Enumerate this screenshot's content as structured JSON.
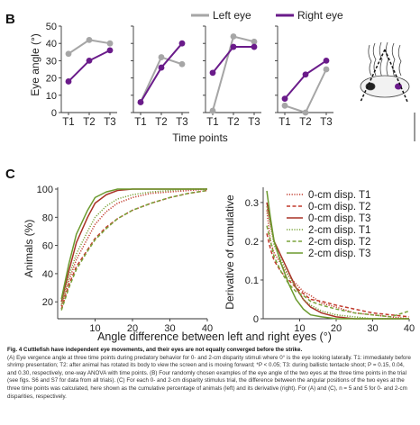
{
  "panel_b": {
    "letter": "B",
    "ylabel": "Eye angle (°)",
    "xlabel": "Time points",
    "legend": [
      {
        "label": "Left eye",
        "color": "#a6a6a6"
      },
      {
        "label": "Right eye",
        "color": "#6a1b8a"
      }
    ],
    "yticks": [
      "0",
      "10",
      "20",
      "30",
      "40",
      "50"
    ],
    "xticks": [
      "T1",
      "T2",
      "T3"
    ]
  },
  "panel_c": {
    "letter": "C",
    "xlabel": "Angle difference between left and right eyes (°)",
    "left_ylabel": "Animals (%)",
    "right_ylabel": "Derivative of cumulative",
    "left_yticks": [
      "20",
      "40",
      "60",
      "80",
      "100"
    ],
    "right_yticks": [
      "0",
      "0.1",
      "0.2",
      "0.3"
    ],
    "xticks": [
      "10",
      "20",
      "30",
      "40"
    ],
    "legend": [
      {
        "label": "0-cm disp. T1",
        "color": "#c0392b",
        "dash": "1.2,1.6"
      },
      {
        "label": "0-cm disp. T2",
        "color": "#c0392b",
        "dash": "4,2.5"
      },
      {
        "label": "0-cm disp. T3",
        "color": "#a83226",
        "dash": ""
      },
      {
        "label": "2-cm disp. T1",
        "color": "#7aa33a",
        "dash": "1.2,1.6"
      },
      {
        "label": "2-cm disp. T2",
        "color": "#7aa33a",
        "dash": "4,2.5"
      },
      {
        "label": "2-cm disp. T3",
        "color": "#6b9a2e",
        "dash": ""
      }
    ]
  },
  "caption": {
    "title": "Fig. 4 Cuttlefish have independent eye movements, and their eyes are not equally converged before the strike.",
    "body": "(A) Eye vergence angle at three time points during predatory behavior for 0- and 2-cm disparity stimuli where 0° is the eye looking laterally. T1: immediately before shrimp presentation; T2: after animal has rotated its body to view the screen and is moving forward; *P < 0.05; T3: during ballistic tentacle shoot; P = 0.15, 0.04, and 0.30, respectively, one-way ANOVA with time points. (B) Four randomly chosen examples of the eye angle of the two eyes at the three time points in the trial (see figs. S6 and S7 for data from all trials). (C) For each 0- and 2-cm disparity stimulus trial, the difference between the angular positions of the two eyes at the three time points was calculated, here shown as the cumulative percentage of animals (left) and its derivative (right). For (A) and (C), n = 5 and 5 for 0- and 2-cm disparities, respectively."
  },
  "chart_data": [
    {
      "type": "line",
      "panel": "B-1",
      "categories": [
        "T1",
        "T2",
        "T3"
      ],
      "ylim": [
        0,
        50
      ],
      "series": [
        {
          "name": "Left eye",
          "values": [
            34,
            42,
            40
          ]
        },
        {
          "name": "Right eye",
          "values": [
            18,
            30,
            36
          ]
        }
      ]
    },
    {
      "type": "line",
      "panel": "B-2",
      "categories": [
        "T1",
        "T2",
        "T3"
      ],
      "ylim": [
        0,
        50
      ],
      "series": [
        {
          "name": "Left eye",
          "values": [
            6,
            32,
            28
          ]
        },
        {
          "name": "Right eye",
          "values": [
            6,
            26,
            40
          ]
        }
      ]
    },
    {
      "type": "line",
      "panel": "B-3",
      "categories": [
        "T1",
        "T2",
        "T3"
      ],
      "ylim": [
        0,
        50
      ],
      "series": [
        {
          "name": "Left eye",
          "values": [
            1,
            44,
            41
          ]
        },
        {
          "name": "Right eye",
          "values": [
            23,
            38,
            38
          ]
        }
      ]
    },
    {
      "type": "line",
      "panel": "B-4",
      "categories": [
        "T1",
        "T2",
        "T3"
      ],
      "ylim": [
        0,
        50
      ],
      "series": [
        {
          "name": "Left eye",
          "values": [
            4,
            0,
            25
          ]
        },
        {
          "name": "Right eye",
          "values": [
            8,
            22,
            30
          ]
        }
      ]
    },
    {
      "type": "line",
      "panel": "C-left",
      "xlabel": "Angle difference between left and right eyes (°)",
      "ylabel": "Animals (%)",
      "xlim": [
        0,
        40
      ],
      "ylim": [
        8,
        100
      ],
      "x": [
        1,
        3,
        5,
        8,
        10,
        13,
        16,
        20,
        25,
        30,
        35,
        40
      ],
      "series": [
        {
          "name": "0-cm disp. T1",
          "values": [
            17,
            35,
            50,
            65,
            75,
            84,
            90,
            94,
            97,
            98,
            99,
            100
          ]
        },
        {
          "name": "0-cm disp. T2",
          "values": [
            15,
            32,
            45,
            57,
            65,
            73,
            79,
            85,
            90,
            94,
            97,
            99
          ]
        },
        {
          "name": "0-cm disp. T3",
          "values": [
            20,
            42,
            62,
            80,
            90,
            96,
            99,
            100,
            100,
            100,
            100,
            100
          ]
        },
        {
          "name": "2-cm disp. T1",
          "values": [
            18,
            38,
            54,
            70,
            80,
            88,
            93,
            96,
            98,
            99,
            100,
            100
          ]
        },
        {
          "name": "2-cm disp. T2",
          "values": [
            14,
            30,
            43,
            56,
            64,
            72,
            79,
            85,
            90,
            94,
            97,
            99
          ]
        },
        {
          "name": "2-cm disp. T3",
          "values": [
            22,
            47,
            68,
            85,
            94,
            98,
            100,
            100,
            100,
            100,
            100,
            100
          ]
        }
      ]
    },
    {
      "type": "line",
      "panel": "C-right",
      "xlabel": "Angle difference between left and right eyes (°)",
      "ylabel": "Derivative of cumulative",
      "xlim": [
        0,
        40
      ],
      "ylim": [
        0,
        0.33
      ],
      "x": [
        1,
        2,
        3,
        5,
        7,
        9,
        11,
        13,
        16,
        20,
        25,
        30,
        35,
        40
      ],
      "series": [
        {
          "name": "0-cm disp. T1",
          "values": [
            0.28,
            0.2,
            0.17,
            0.14,
            0.11,
            0.09,
            0.07,
            0.06,
            0.04,
            0.03,
            0.015,
            0.01,
            0.005,
            0.0
          ]
        },
        {
          "name": "0-cm disp. T2",
          "values": [
            0.22,
            0.18,
            0.15,
            0.12,
            0.1,
            0.08,
            0.065,
            0.05,
            0.045,
            0.035,
            0.025,
            0.015,
            0.01,
            0.005
          ]
        },
        {
          "name": "0-cm disp. T3",
          "values": [
            0.3,
            0.25,
            0.2,
            0.16,
            0.12,
            0.08,
            0.05,
            0.03,
            0.015,
            0.005,
            0.0,
            0.0,
            0.0,
            0.0
          ]
        },
        {
          "name": "2-cm disp. T1",
          "values": [
            0.29,
            0.24,
            0.19,
            0.15,
            0.11,
            0.08,
            0.05,
            0.035,
            0.02,
            0.01,
            0.005,
            0.0,
            0.0,
            0.0
          ]
        },
        {
          "name": "2-cm disp. T2",
          "values": [
            0.24,
            0.2,
            0.16,
            0.12,
            0.09,
            0.07,
            0.06,
            0.045,
            0.035,
            0.025,
            0.015,
            0.01,
            0.005,
            0.02
          ]
        },
        {
          "name": "2-cm disp. T3",
          "values": [
            0.33,
            0.26,
            0.2,
            0.14,
            0.09,
            0.05,
            0.025,
            0.01,
            0.005,
            0.0,
            0.0,
            0.0,
            0.0,
            0.0
          ]
        }
      ]
    }
  ]
}
